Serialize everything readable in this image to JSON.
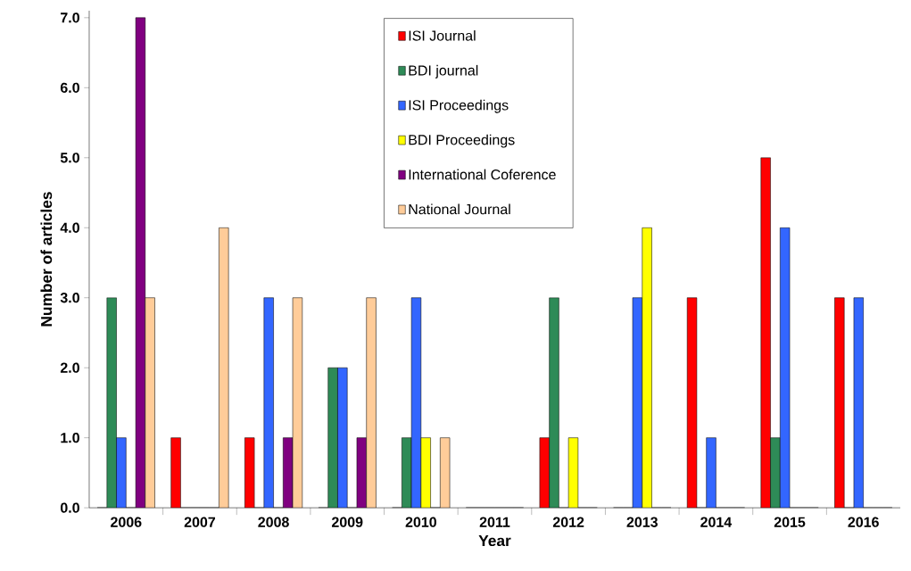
{
  "chart_data": {
    "type": "bar",
    "xlabel": "Year",
    "ylabel": "Number of articles",
    "categories": [
      "2006",
      "2007",
      "2008",
      "2009",
      "2010",
      "2011",
      "2012",
      "2013",
      "2014",
      "2015",
      "2016"
    ],
    "series": [
      {
        "name": "ISI Journal",
        "color": "#ff0000",
        "values": [
          0,
          1,
          1,
          0,
          0,
          0,
          1,
          0,
          3,
          5,
          3
        ]
      },
      {
        "name": "BDI journal",
        "color": "#2e8b57",
        "values": [
          3,
          0,
          0,
          2,
          1,
          0,
          3,
          0,
          0,
          1,
          0
        ]
      },
      {
        "name": "ISI Proceedings",
        "color": "#3366ff",
        "values": [
          1,
          0,
          3,
          2,
          3,
          0,
          0,
          3,
          1,
          4,
          3
        ]
      },
      {
        "name": "BDI Proceedings",
        "color": "#ffff00",
        "values": [
          0,
          0,
          0,
          0,
          1,
          0,
          1,
          4,
          0,
          0,
          0
        ]
      },
      {
        "name": "International Coference",
        "color": "#800080",
        "values": [
          7,
          0,
          1,
          1,
          0,
          0,
          0,
          0,
          0,
          0,
          0
        ]
      },
      {
        "name": "National Journal",
        "color": "#ffcc99",
        "values": [
          3,
          4,
          3,
          3,
          1,
          0,
          0,
          0,
          0,
          0,
          0
        ]
      }
    ],
    "ylim": [
      0,
      7.1
    ],
    "yticks": [
      {
        "value": 0,
        "label": "0.0"
      },
      {
        "value": 1,
        "label": "1.0"
      },
      {
        "value": 2,
        "label": "2.0"
      },
      {
        "value": 3,
        "label": "3.0"
      },
      {
        "value": 4,
        "label": "4.0"
      },
      {
        "value": 5,
        "label": "5.0"
      },
      {
        "value": 6,
        "label": "6.0"
      },
      {
        "value": 7,
        "label": "7.0"
      }
    ],
    "grid": false,
    "legend": "top"
  }
}
